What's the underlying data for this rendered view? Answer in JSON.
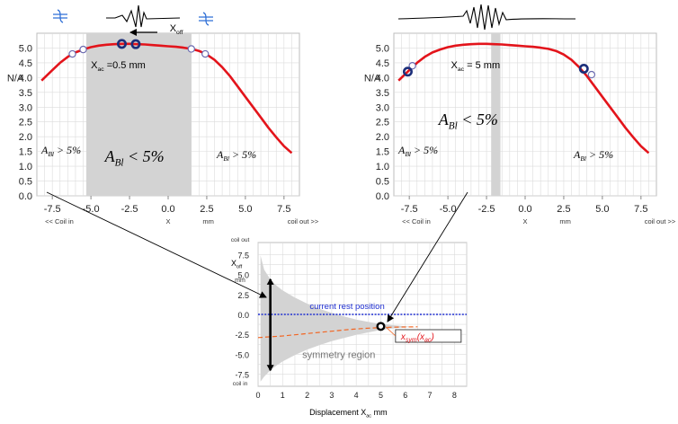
{
  "colors": {
    "curve": "#e3141b",
    "rest_line": "#1f2fd0",
    "sym_curve": "#f26522",
    "region_fill": "#d3d3d3",
    "grid": "#dcdcdc",
    "marker_dark": "#1c2f7a",
    "marker_light": "#6b6bb0",
    "coil_blue": "#2f6fd6"
  },
  "chart_data": [
    {
      "id": "left",
      "type": "line",
      "title": "",
      "ylabel": "N/A",
      "xlabel": "X",
      "x_unit": "mm",
      "x_left_note": "<< Coil in",
      "x_right_note": "coil out >>",
      "xlim": [
        -8.5,
        8.5
      ],
      "ylim": [
        0,
        5.5
      ],
      "x_ticks": [
        -7.5,
        -5.0,
        -2.5,
        0.0,
        2.5,
        5.0,
        7.5
      ],
      "x_tick_labels": [
        "-7.5",
        "-5.0",
        "-2.5",
        "0.0",
        "2.5",
        "5.0",
        "7.5"
      ],
      "y_ticks": [
        0.0,
        0.5,
        1.0,
        1.5,
        2.0,
        2.5,
        3.0,
        3.5,
        4.0,
        4.5,
        5.0
      ],
      "y_tick_labels": [
        "0.0",
        "0.5",
        "1.0",
        "1.5",
        "2.0",
        "2.5",
        "3.0",
        "3.5",
        "4.0",
        "4.5",
        "5.0"
      ],
      "grid": true,
      "curve": {
        "x": [
          -8.2,
          -7.5,
          -7.0,
          -6.5,
          -6.0,
          -5.5,
          -5.0,
          -4.5,
          -4.0,
          -3.5,
          -3.0,
          -2.5,
          -2.0,
          -1.5,
          -1.0,
          -0.5,
          0.0,
          0.5,
          1.0,
          1.5,
          2.0,
          2.5,
          3.0,
          3.5,
          4.0,
          4.5,
          5.0,
          5.5,
          6.0,
          6.5,
          7.0,
          7.5,
          8.0
        ],
        "y": [
          3.9,
          4.25,
          4.5,
          4.7,
          4.85,
          4.95,
          5.03,
          5.08,
          5.11,
          5.13,
          5.14,
          5.14,
          5.13,
          5.12,
          5.1,
          5.08,
          5.06,
          5.04,
          5.01,
          4.97,
          4.9,
          4.78,
          4.6,
          4.35,
          4.05,
          3.7,
          3.35,
          3.0,
          2.65,
          2.3,
          1.98,
          1.68,
          1.45
        ]
      },
      "shaded_region": [
        -5.3,
        1.5
      ],
      "open_markers": [
        {
          "x": -6.2,
          "y": 4.8
        },
        {
          "x": -5.5,
          "y": 4.95
        },
        {
          "x": 1.5,
          "y": 4.97
        },
        {
          "x": 2.4,
          "y": 4.8
        }
      ],
      "bold_markers": [
        {
          "x": -3.0,
          "y": 5.14
        },
        {
          "x": -2.1,
          "y": 5.13
        }
      ],
      "annotations": {
        "xac": "X",
        "xac_sub": "ac",
        "xac_rest": " =0.5 mm",
        "xoff": "X",
        "xoff_sub": "off",
        "center": {
          "main": "A",
          "sub": "Bl",
          "tail": " < 5%"
        },
        "left": {
          "main": "A",
          "sub": "Bl",
          "tail": " > 5%"
        },
        "right": {
          "main": "A",
          "sub": "Bl",
          "tail": " > 5%"
        }
      }
    },
    {
      "id": "right",
      "type": "line",
      "title": "",
      "ylabel": "N/A",
      "xlabel": "X",
      "x_unit": "mm",
      "x_left_note": "<< Coil in",
      "x_right_note": "coil out >>",
      "xlim": [
        -8.5,
        8.5
      ],
      "ylim": [
        0,
        5.5
      ],
      "x_ticks": [
        -7.5,
        -5.0,
        -2.5,
        0.0,
        2.5,
        5.0,
        7.5
      ],
      "x_tick_labels": [
        "-7.5",
        "-5.0",
        "-2.5",
        "0.0",
        "2.5",
        "5.0",
        "7.5"
      ],
      "y_ticks": [
        0.0,
        0.5,
        1.0,
        1.5,
        2.0,
        2.5,
        3.0,
        3.5,
        4.0,
        4.5,
        5.0
      ],
      "y_tick_labels": [
        "0.0",
        "0.5",
        "1.0",
        "1.5",
        "2.0",
        "2.5",
        "3.0",
        "3.5",
        "4.0",
        "4.5",
        "5.0"
      ],
      "grid": true,
      "curve": {
        "x": [
          -8.2,
          -7.5,
          -7.0,
          -6.5,
          -6.0,
          -5.5,
          -5.0,
          -4.5,
          -4.0,
          -3.5,
          -3.0,
          -2.5,
          -2.0,
          -1.5,
          -1.0,
          -0.5,
          0.0,
          0.5,
          1.0,
          1.5,
          2.0,
          2.5,
          3.0,
          3.5,
          4.0,
          4.5,
          5.0,
          5.5,
          6.0,
          6.5,
          7.0,
          7.5,
          8.0
        ],
        "y": [
          3.9,
          4.25,
          4.5,
          4.7,
          4.85,
          4.95,
          5.03,
          5.08,
          5.11,
          5.13,
          5.14,
          5.14,
          5.13,
          5.12,
          5.1,
          5.08,
          5.06,
          5.04,
          5.01,
          4.97,
          4.9,
          4.78,
          4.6,
          4.35,
          4.05,
          3.7,
          3.35,
          3.0,
          2.65,
          2.3,
          1.98,
          1.68,
          1.45
        ]
      },
      "shaded_region": [
        -2.2,
        -1.6
      ],
      "open_markers": [
        {
          "x": -7.3,
          "y": 4.4
        },
        {
          "x": 4.3,
          "y": 4.1
        }
      ],
      "bold_markers": [
        {
          "x": -7.6,
          "y": 4.2
        },
        {
          "x": 3.8,
          "y": 4.3
        }
      ],
      "annotations": {
        "xac": "X",
        "xac_sub": "ac",
        "xac_rest": " = 5 mm",
        "center": {
          "main": "A",
          "sub": "Bl",
          "tail": " < 5%"
        },
        "left": {
          "main": "A",
          "sub": "Bl",
          "tail": " > 5%"
        },
        "right": {
          "main": "A",
          "sub": "Bl",
          "tail": " > 5%"
        }
      }
    },
    {
      "id": "bottom",
      "type": "area",
      "title": "",
      "xlabel": "Displacement X",
      "xlabel_sub": "ac",
      "xlabel_unit": " mm",
      "ylabel": "X",
      "ylabel_sub": "off",
      "y_unit": "mm",
      "y_top_note": "coil out",
      "y_bottom_note": "coil in",
      "xlim": [
        0,
        8.5
      ],
      "ylim": [
        -9,
        9
      ],
      "x_ticks": [
        0,
        1,
        2,
        3,
        4,
        5,
        6,
        7,
        8
      ],
      "x_tick_labels": [
        "0",
        "1",
        "2",
        "3",
        "4",
        "5",
        "6",
        "7",
        "8"
      ],
      "y_ticks": [
        7.5,
        5.0,
        2.5,
        0.0,
        -2.5,
        -5.0,
        -7.5
      ],
      "y_tick_labels": [
        "7.5",
        "5.0",
        "2.5",
        "0.0",
        "-2.5",
        "-5.0",
        "-7.5"
      ],
      "grid": true,
      "symmetry_region": {
        "x": [
          0.1,
          0.25,
          0.5,
          0.75,
          1,
          1.5,
          2,
          2.5,
          3,
          3.5,
          4,
          4.5,
          5,
          5.5,
          6,
          6.5
        ],
        "upper": [
          7.4,
          5.6,
          4.4,
          3.6,
          3.0,
          2.1,
          1.35,
          0.7,
          0.2,
          -0.25,
          -0.65,
          -0.95,
          -1.2,
          -1.35,
          -1.5,
          -1.6
        ],
        "lower": [
          -8.4,
          -7.8,
          -7.0,
          -6.4,
          -5.9,
          -5.1,
          -4.4,
          -3.85,
          -3.35,
          -2.95,
          -2.55,
          -2.25,
          -1.95,
          -1.75,
          -1.6,
          -1.6
        ]
      },
      "x_sym": {
        "x": [
          0,
          0.5,
          1,
          1.5,
          2,
          2.5,
          3,
          3.5,
          4,
          4.5,
          5,
          5.5,
          6,
          6.5
        ],
        "y": [
          -2.9,
          -2.8,
          -2.7,
          -2.55,
          -2.4,
          -2.25,
          -2.1,
          -1.95,
          -1.82,
          -1.72,
          -1.65,
          -1.6,
          -1.57,
          -1.55
        ]
      },
      "rest_position_y": 0,
      "rest_label": "current rest position",
      "region_label": "symmetry region",
      "sym_label": "x",
      "sym_label_sub": "sym",
      "sym_label_arg": "(x",
      "sym_label_arg_sub": "ac",
      "sym_label_close": ")",
      "operating_point": {
        "x": 5,
        "y": -1.5
      },
      "span_marker": {
        "x": 0.5,
        "y_top": 4.4,
        "y_bottom": -7.0
      }
    }
  ]
}
